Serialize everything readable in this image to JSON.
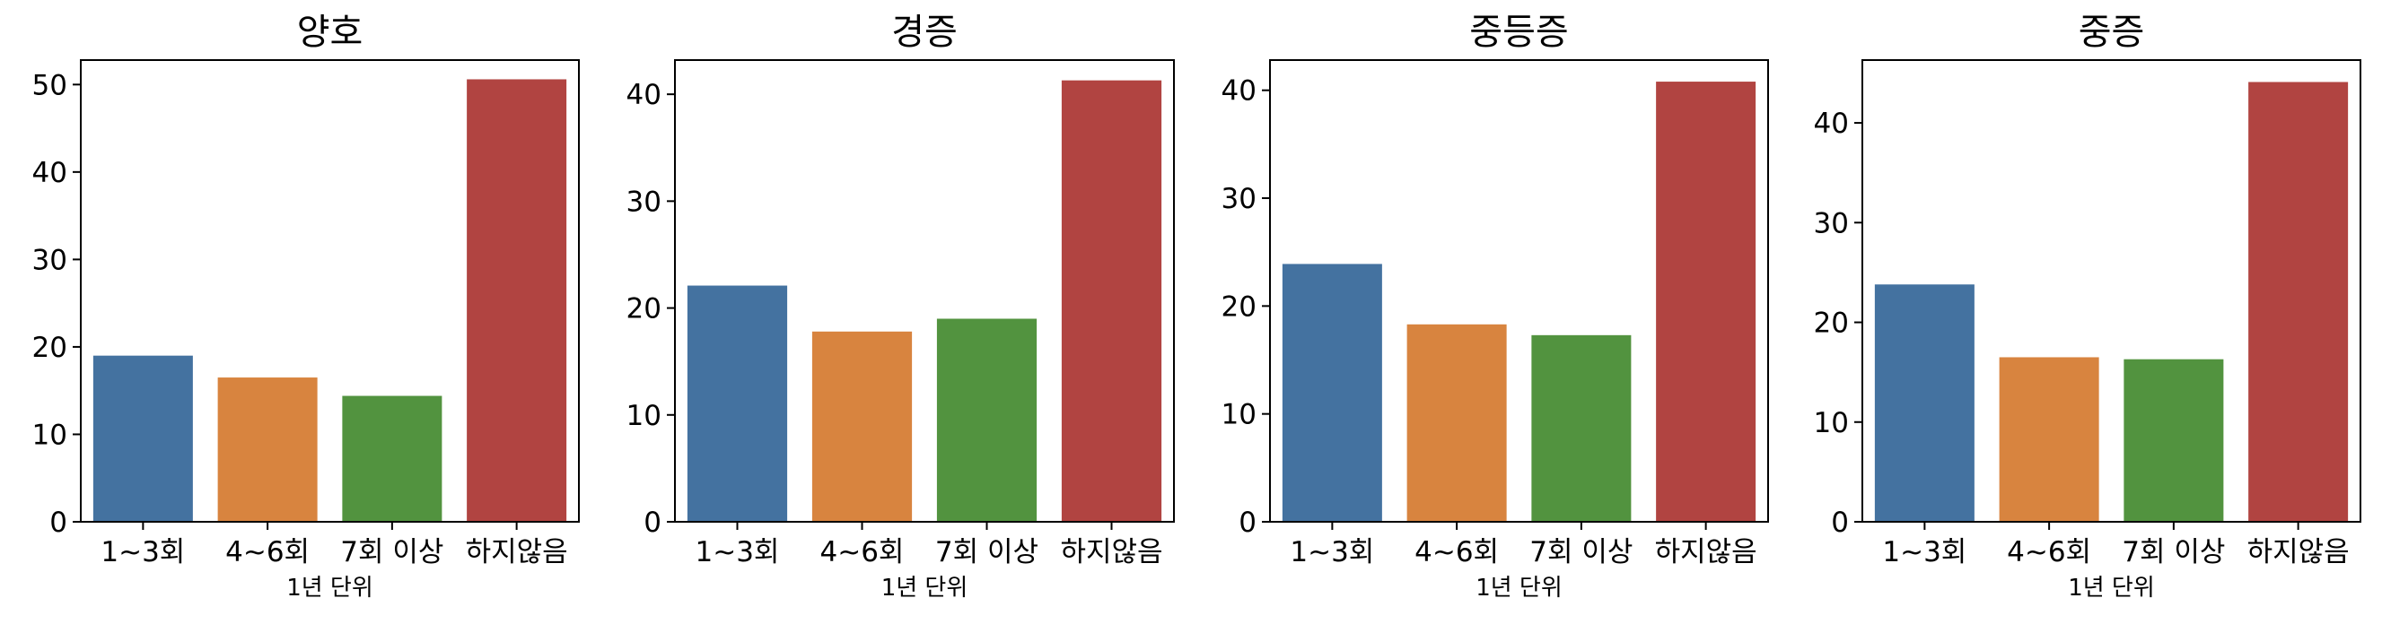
{
  "chart_data": [
    {
      "type": "bar",
      "title": "양호",
      "categories": [
        "1~3회",
        "4~6회",
        "7회 이상",
        "하지않음"
      ],
      "values": [
        19.0,
        16.5,
        14.4,
        50.6
      ],
      "xlabel": "1년 단위",
      "ylabel": "",
      "ylim": [
        0,
        52.8
      ],
      "yticks": [
        0,
        10,
        20,
        30,
        40,
        50
      ]
    },
    {
      "type": "bar",
      "title": "경증",
      "categories": [
        "1~3회",
        "4~6회",
        "7회 이상",
        "하지않음"
      ],
      "values": [
        22.1,
        17.8,
        19.0,
        41.3
      ],
      "xlabel": "1년 단위",
      "ylabel": "",
      "ylim": [
        0,
        43.2
      ],
      "yticks": [
        0,
        10,
        20,
        30,
        40
      ]
    },
    {
      "type": "bar",
      "title": "중등증",
      "categories": [
        "1~3회",
        "4~6회",
        "7회 이상",
        "하지않음"
      ],
      "values": [
        23.9,
        18.3,
        17.3,
        40.8
      ],
      "xlabel": "1년 단위",
      "ylabel": "",
      "ylim": [
        0,
        42.8
      ],
      "yticks": [
        0,
        10,
        20,
        30,
        40
      ]
    },
    {
      "type": "bar",
      "title": "중증",
      "categories": [
        "1~3회",
        "4~6회",
        "7회 이상",
        "하지않음"
      ],
      "values": [
        23.8,
        16.5,
        16.3,
        44.1
      ],
      "xlabel": "1년 단위",
      "ylabel": "",
      "ylim": [
        0,
        46.3
      ],
      "yticks": [
        0,
        10,
        20,
        30,
        40
      ]
    }
  ],
  "colors": [
    "#4472a0",
    "#d8843f",
    "#52933f",
    "#b14441"
  ]
}
